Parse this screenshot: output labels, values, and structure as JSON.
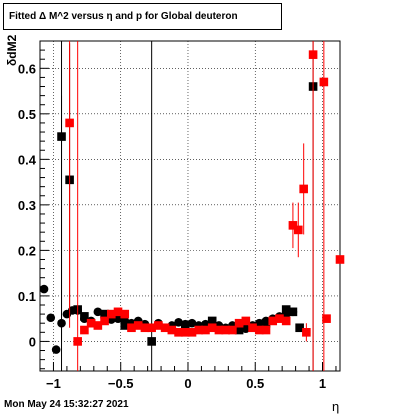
{
  "chart_data": {
    "type": "scatter",
    "title": "Fitted Δ M^2 versus η and p for Global deuteron",
    "xlabel": "η",
    "ylabel": "δdM2",
    "xlim": [
      -1.1,
      1.13
    ],
    "ylim": [
      -0.065,
      0.66
    ],
    "grid": true,
    "x_ticks": [
      -1,
      -0.5,
      0,
      0.5,
      1
    ],
    "x_tick_labels": [
      "−1",
      "−0.5",
      "0",
      "0.5",
      "1"
    ],
    "y_ticks": [
      0,
      0.1,
      0.2,
      0.3,
      0.4,
      0.5,
      0.6
    ],
    "y_tick_labels": [
      "0",
      "0.1",
      "0.2",
      "0.3",
      "0.4",
      "0.5",
      "0.6"
    ],
    "series": [
      {
        "color": "#000000",
        "marker": "circle",
        "points": [
          {
            "x": -1.07,
            "y": 0.115,
            "e": 0
          },
          {
            "x": -1.02,
            "y": 0.052,
            "e": 0
          },
          {
            "x": -0.98,
            "y": -0.018,
            "e": 0
          },
          {
            "x": -0.94,
            "y": 0.04,
            "e": 0.5
          },
          {
            "x": -0.9,
            "y": 0.06,
            "e": 0
          },
          {
            "x": -0.86,
            "y": 0.068,
            "e": 0
          },
          {
            "x": -0.82,
            "y": 0.068,
            "e": 0
          },
          {
            "x": -0.77,
            "y": 0.05,
            "e": 0
          },
          {
            "x": -0.72,
            "y": 0.045,
            "e": 0
          },
          {
            "x": -0.67,
            "y": 0.065,
            "e": 0
          },
          {
            "x": -0.62,
            "y": 0.058,
            "e": 0
          },
          {
            "x": -0.57,
            "y": 0.048,
            "e": 0
          },
          {
            "x": -0.52,
            "y": 0.05,
            "e": 0
          },
          {
            "x": -0.47,
            "y": 0.045,
            "e": 0
          },
          {
            "x": -0.42,
            "y": 0.04,
            "e": 0
          },
          {
            "x": -0.37,
            "y": 0.045,
            "e": 0
          },
          {
            "x": -0.32,
            "y": 0.038,
            "e": 0
          },
          {
            "x": -0.27,
            "y": 0.03,
            "e": 0
          },
          {
            "x": -0.22,
            "y": 0.04,
            "e": 0
          },
          {
            "x": -0.17,
            "y": 0.03,
            "e": 0
          },
          {
            "x": -0.12,
            "y": 0.035,
            "e": 0
          },
          {
            "x": -0.07,
            "y": 0.042,
            "e": 0
          },
          {
            "x": -0.02,
            "y": 0.038,
            "e": 0
          },
          {
            "x": 0.03,
            "y": 0.04,
            "e": 0
          },
          {
            "x": 0.08,
            "y": 0.035,
            "e": 0
          },
          {
            "x": 0.13,
            "y": 0.038,
            "e": 0
          },
          {
            "x": 0.18,
            "y": 0.04,
            "e": 0
          },
          {
            "x": 0.23,
            "y": 0.035,
            "e": 0
          },
          {
            "x": 0.28,
            "y": 0.03,
            "e": 0
          },
          {
            "x": 0.33,
            "y": 0.035,
            "e": 0
          },
          {
            "x": 0.38,
            "y": 0.03,
            "e": 0
          },
          {
            "x": 0.43,
            "y": 0.028,
            "e": 0
          },
          {
            "x": 0.48,
            "y": 0.035,
            "e": 0
          },
          {
            "x": 0.53,
            "y": 0.04,
            "e": 0
          },
          {
            "x": 0.58,
            "y": 0.045,
            "e": 0
          },
          {
            "x": 0.63,
            "y": 0.05,
            "e": 0
          },
          {
            "x": 0.68,
            "y": 0.055,
            "e": 0
          },
          {
            "x": 0.73,
            "y": 0.06,
            "e": 0
          },
          {
            "x": 0.78,
            "y": 0.065,
            "e": 0
          }
        ]
      },
      {
        "color": "#000000",
        "marker": "square",
        "points": [
          {
            "x": -0.94,
            "y": 0.45,
            "e": 0.45
          },
          {
            "x": -0.88,
            "y": 0.355,
            "e": 0.3
          },
          {
            "x": -0.82,
            "y": 0.07,
            "e": 0
          },
          {
            "x": -0.77,
            "y": 0.055,
            "e": 0
          },
          {
            "x": -0.62,
            "y": 0.06,
            "e": 0
          },
          {
            "x": -0.47,
            "y": 0.035,
            "e": 0
          },
          {
            "x": -0.27,
            "y": 0.0,
            "e": 0.7
          },
          {
            "x": -0.02,
            "y": 0.035,
            "e": 0
          },
          {
            "x": 0.18,
            "y": 0.045,
            "e": 0
          },
          {
            "x": 0.38,
            "y": 0.025,
            "e": 0
          },
          {
            "x": 0.58,
            "y": 0.04,
            "e": 0
          },
          {
            "x": 0.73,
            "y": 0.07,
            "e": 0
          },
          {
            "x": 0.78,
            "y": 0.065,
            "e": 0
          },
          {
            "x": 0.83,
            "y": 0.03,
            "e": 0
          },
          {
            "x": 0.93,
            "y": 0.56,
            "e": 0.7
          }
        ]
      },
      {
        "color": "#ff0000",
        "marker": "square",
        "points": [
          {
            "x": -0.88,
            "y": 0.48,
            "e": 0.45
          },
          {
            "x": -0.82,
            "y": 0.0,
            "e": 0.7
          },
          {
            "x": -0.77,
            "y": 0.025,
            "e": 0
          },
          {
            "x": -0.72,
            "y": 0.04,
            "e": 0
          },
          {
            "x": -0.67,
            "y": 0.035,
            "e": 0
          },
          {
            "x": -0.62,
            "y": 0.045,
            "e": 0
          },
          {
            "x": -0.57,
            "y": 0.06,
            "e": 0
          },
          {
            "x": -0.52,
            "y": 0.065,
            "e": 0
          },
          {
            "x": -0.47,
            "y": 0.06,
            "e": 0
          },
          {
            "x": -0.42,
            "y": 0.03,
            "e": 0
          },
          {
            "x": -0.37,
            "y": 0.035,
            "e": 0
          },
          {
            "x": -0.32,
            "y": 0.03,
            "e": 0
          },
          {
            "x": -0.27,
            "y": 0.03,
            "e": 0
          },
          {
            "x": -0.22,
            "y": 0.035,
            "e": 0
          },
          {
            "x": -0.17,
            "y": 0.03,
            "e": 0
          },
          {
            "x": -0.12,
            "y": 0.025,
            "e": 0
          },
          {
            "x": -0.07,
            "y": 0.02,
            "e": 0
          },
          {
            "x": -0.02,
            "y": 0.02,
            "e": 0
          },
          {
            "x": 0.03,
            "y": 0.02,
            "e": 0
          },
          {
            "x": 0.08,
            "y": 0.025,
            "e": 0
          },
          {
            "x": 0.13,
            "y": 0.025,
            "e": 0
          },
          {
            "x": 0.18,
            "y": 0.03,
            "e": 0
          },
          {
            "x": 0.23,
            "y": 0.025,
            "e": 0
          },
          {
            "x": 0.28,
            "y": 0.025,
            "e": 0
          },
          {
            "x": 0.33,
            "y": 0.025,
            "e": 0
          },
          {
            "x": 0.38,
            "y": 0.04,
            "e": 0
          },
          {
            "x": 0.43,
            "y": 0.045,
            "e": 0
          },
          {
            "x": 0.48,
            "y": 0.03,
            "e": 0
          },
          {
            "x": 0.53,
            "y": 0.025,
            "e": 0
          },
          {
            "x": 0.58,
            "y": 0.025,
            "e": 0
          },
          {
            "x": 0.63,
            "y": 0.045,
            "e": 0
          },
          {
            "x": 0.68,
            "y": 0.05,
            "e": 0
          },
          {
            "x": 0.73,
            "y": 0.045,
            "e": 0
          },
          {
            "x": 0.78,
            "y": 0.255,
            "e": 0.05
          },
          {
            "x": 0.82,
            "y": 0.245,
            "e": 0.06
          },
          {
            "x": 0.86,
            "y": 0.335,
            "e": 0.1
          },
          {
            "x": 0.88,
            "y": 0.02,
            "e": 0.02
          },
          {
            "x": 0.93,
            "y": 0.63,
            "e": 0.7
          },
          {
            "x": 1.01,
            "y": 0.57,
            "e": 0.7
          },
          {
            "x": 1.03,
            "y": 0.05,
            "e": 0
          },
          {
            "x": 1.13,
            "y": 0.18,
            "e": 0
          }
        ]
      }
    ]
  },
  "footer": {
    "timestamp": "Mon May 24 15:32:27 2021"
  }
}
